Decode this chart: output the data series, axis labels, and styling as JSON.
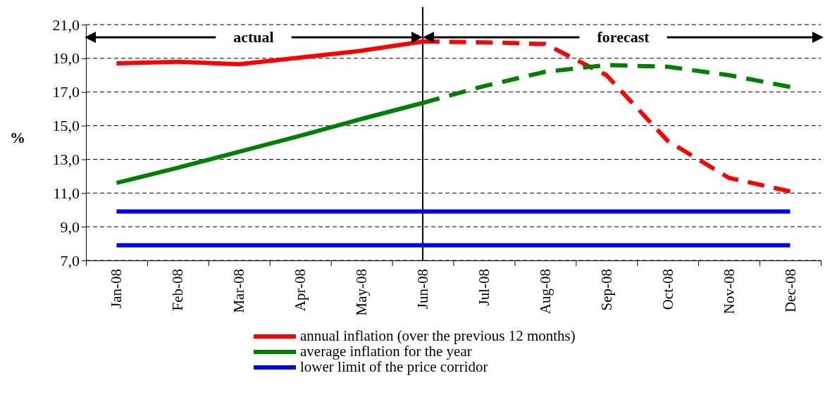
{
  "chart_data": {
    "type": "line",
    "ylabel": "%",
    "categories": [
      "Jan-08",
      "Feb-08",
      "Mar-08",
      "Apr-08",
      "May-08",
      "Jun-08",
      "Jul-08",
      "Aug-08",
      "Sep-08",
      "Oct-08",
      "Nov-08",
      "Dec-08"
    ],
    "ylim": [
      7,
      21
    ],
    "yticks": [
      {
        "value": 7,
        "label": "7,0"
      },
      {
        "value": 9,
        "label": "9,0"
      },
      {
        "value": 11,
        "label": "11,0"
      },
      {
        "value": 13,
        "label": "13,0"
      },
      {
        "value": 15,
        "label": "15,0"
      },
      {
        "value": 17,
        "label": "17,0"
      },
      {
        "value": 19,
        "label": "19,0"
      },
      {
        "value": 21,
        "label": "21,0"
      }
    ],
    "grid": "y",
    "legend": "bottom",
    "marker": "none",
    "series": [
      {
        "name": "annual inflation (over the previous 12 months)",
        "color": "#ff0000",
        "line_style": "solid",
        "values": [
          18.7,
          18.8,
          18.65,
          19.05,
          19.45,
          20.0,
          null,
          null,
          null,
          null,
          null,
          null
        ]
      },
      {
        "color": "#ff0000",
        "line_style": "dashed",
        "values": [
          null,
          null,
          null,
          null,
          null,
          20.0,
          19.95,
          19.85,
          18.0,
          14.1,
          11.9,
          11.1
        ]
      },
      {
        "name": "average inflation for the year",
        "color": "#008000",
        "line_style": "solid",
        "values": [
          11.6,
          12.5,
          13.45,
          14.4,
          15.4,
          16.35,
          null,
          null,
          null,
          null,
          null,
          null
        ]
      },
      {
        "color": "#008000",
        "line_style": "dashed",
        "values": [
          null,
          null,
          null,
          null,
          null,
          16.35,
          17.35,
          18.2,
          18.6,
          18.5,
          18.0,
          17.3
        ]
      },
      {
        "color": "#0000ff",
        "line_style": "solid",
        "values": [
          9.9,
          9.9,
          9.9,
          9.9,
          9.9,
          9.9,
          9.9,
          9.9,
          9.9,
          9.9,
          9.9,
          9.9
        ]
      },
      {
        "name": "lower limit of the price corridor",
        "color": "#0000ff",
        "line_style": "solid",
        "values": [
          7.9,
          7.9,
          7.9,
          7.9,
          7.9,
          7.9,
          7.9,
          7.9,
          7.9,
          7.9,
          7.9,
          7.9
        ]
      }
    ],
    "ref_lines": [
      {
        "axis": "x",
        "value": "Jun-08",
        "color": "#000000",
        "line_style": "solid"
      }
    ],
    "annotations": [
      "actual",
      "forecast"
    ]
  }
}
